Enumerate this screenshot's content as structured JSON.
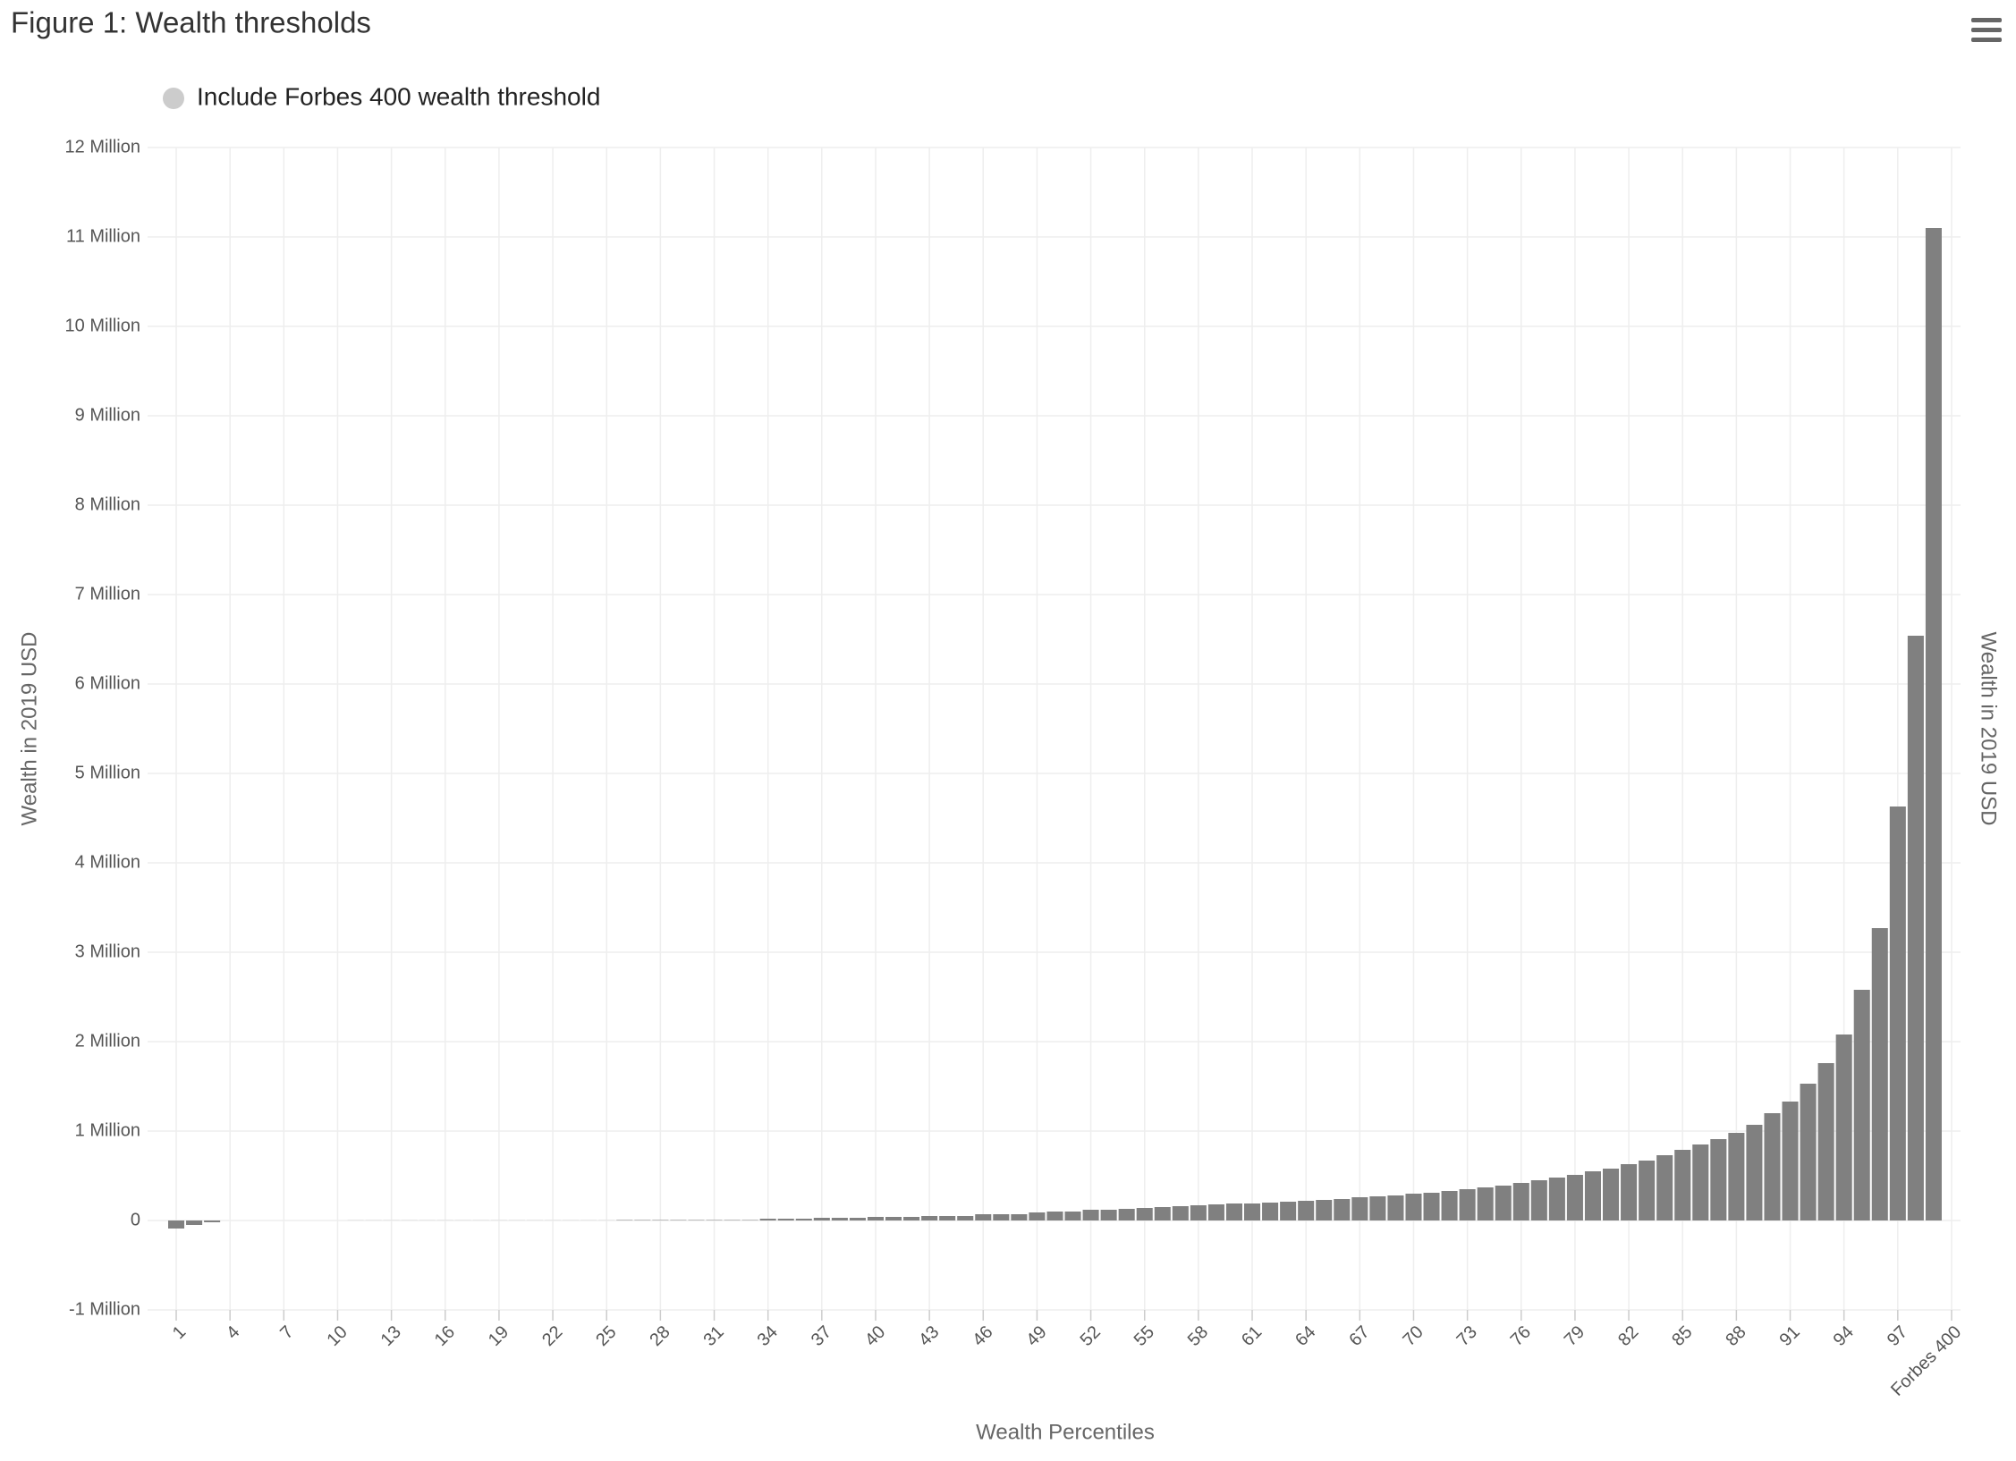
{
  "chart_data": {
    "type": "bar",
    "title": "Figure 1: Wealth thresholds",
    "legend_items": [
      "Include Forbes 400 wealth threshold"
    ],
    "x_label": "Wealth Percentiles",
    "y_label": "Wealth in 2019 USD",
    "y2_label": "Wealth in 2019 USD",
    "color": "#808080",
    "grid": true,
    "categories": [
      "1",
      null,
      null,
      "4",
      null,
      null,
      "7",
      null,
      null,
      "10",
      null,
      null,
      "13",
      null,
      null,
      "16",
      null,
      null,
      "19",
      null,
      null,
      "22",
      null,
      null,
      "25",
      null,
      null,
      "28",
      null,
      null,
      "31",
      null,
      null,
      "34",
      null,
      null,
      "37",
      null,
      null,
      "40",
      null,
      null,
      "43",
      null,
      null,
      "46",
      null,
      null,
      "49",
      null,
      null,
      "52",
      null,
      null,
      "55",
      null,
      null,
      "58",
      null,
      null,
      "61",
      null,
      null,
      "64",
      null,
      null,
      "67",
      null,
      null,
      "70",
      null,
      null,
      "73",
      null,
      null,
      "76",
      null,
      null,
      "79",
      null,
      null,
      "82",
      null,
      null,
      "85",
      null,
      null,
      "88",
      null,
      null,
      "91",
      null,
      null,
      "94",
      null,
      null,
      "97",
      null,
      null,
      "Forbes 400"
    ],
    "values": [
      -90000,
      -50000,
      -20000,
      0,
      0,
      0,
      0,
      0,
      0,
      0,
      1000,
      1000,
      1000,
      1000,
      1000,
      1000,
      1000,
      1000,
      1000,
      1000,
      1000,
      1000,
      1000,
      1000,
      1000,
      5000,
      5000,
      5000,
      5000,
      5000,
      5000,
      5000,
      5000,
      20000,
      20000,
      20000,
      30000,
      30000,
      30000,
      40000,
      40000,
      40000,
      50000,
      50000,
      50000,
      70000,
      70000,
      70000,
      90000,
      100000,
      100000,
      120000,
      120000,
      130000,
      140000,
      150000,
      160000,
      170000,
      180000,
      190000,
      190000,
      200000,
      210000,
      220000,
      230000,
      240000,
      260000,
      270000,
      280000,
      300000,
      310000,
      330000,
      350000,
      370000,
      390000,
      420000,
      450000,
      480000,
      510000,
      550000,
      580000,
      630000,
      670000,
      730000,
      790000,
      850000,
      910000,
      980000,
      1070000,
      1200000,
      1330000,
      1530000,
      1760000,
      2080000,
      2580000,
      3270000,
      4630000,
      6540000,
      11100000,
      null
    ],
    "ylim": [
      -1000000,
      12000000
    ],
    "yticks": [
      {
        "value": -1000000,
        "label": "-1 Million"
      },
      0,
      {
        "value": 1000000,
        "label": "1 Million"
      },
      {
        "value": 2000000,
        "label": "2 Million"
      },
      {
        "value": 3000000,
        "label": "3 Million"
      },
      {
        "value": 4000000,
        "label": "4 Million"
      },
      {
        "value": 5000000,
        "label": "5 Million"
      },
      {
        "value": 6000000,
        "label": "6 Million"
      },
      {
        "value": 7000000,
        "label": "7 Million"
      },
      {
        "value": 8000000,
        "label": "8 Million"
      },
      {
        "value": 9000000,
        "label": "9 Million"
      },
      {
        "value": 10000000,
        "label": "10 Million"
      },
      {
        "value": 11000000,
        "label": "11 Million"
      },
      {
        "value": 12000000,
        "label": "12 Million"
      }
    ]
  }
}
